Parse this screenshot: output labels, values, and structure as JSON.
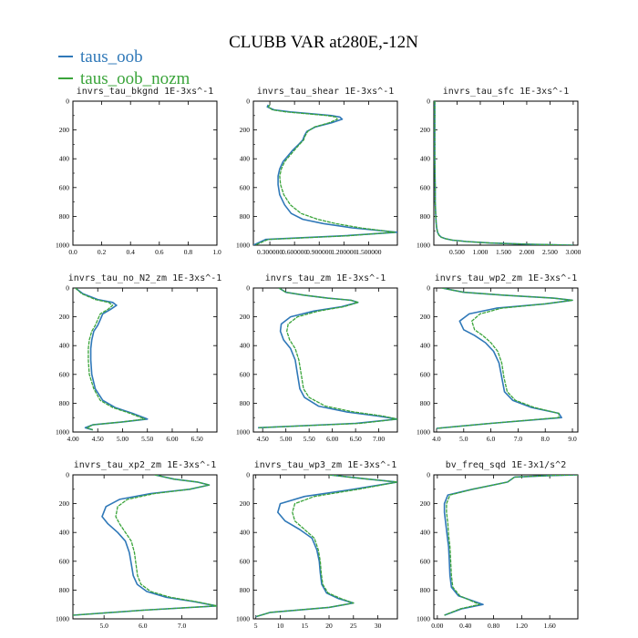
{
  "figure": {
    "title": "CLUBB VAR at280E,-12N",
    "legend": [
      {
        "label": "taus_oob",
        "color": "#2f78b8"
      },
      {
        "label": "taus_oob_nozm",
        "color": "#3aa43a"
      }
    ]
  },
  "chart_data": [
    {
      "type": "line",
      "title": "invrs_tau_bkgnd",
      "units": "1E-3xs^-1",
      "xticks": [
        "0.0",
        "0.2",
        "0.4",
        "0.6",
        "0.8",
        "1.0"
      ],
      "yticks": [
        "0",
        "200",
        "400",
        "600",
        "800",
        "1000"
      ],
      "xlim": [
        0,
        1
      ],
      "ylim": [
        1000,
        0
      ],
      "series": []
    },
    {
      "type": "line",
      "title": "invrs_tau_shear",
      "units": "1E-3xs^-1",
      "xticks": [
        "0.300000",
        "0.600000",
        "0.900000",
        "1.200000",
        "1.500000"
      ],
      "yticks": [
        "0",
        "200",
        "400",
        "600",
        "800",
        "1000"
      ],
      "xlim": [
        0.1,
        1.85
      ],
      "ylim": [
        1000,
        0
      ],
      "series": [
        {
          "name": "taus_oob",
          "x": [
            0.28,
            0.27,
            0.35,
            0.55,
            0.85,
            1.05,
            1.15,
            1.18,
            1.05,
            0.85,
            0.75,
            0.72,
            0.7,
            0.65,
            0.58,
            0.52,
            0.46,
            0.42,
            0.4,
            0.4,
            0.42,
            0.48,
            0.56,
            0.7,
            0.95,
            1.3,
            1.85,
            1.2,
            0.25,
            0.1
          ],
          "y": [
            25,
            40,
            60,
            75,
            90,
            100,
            110,
            125,
            150,
            180,
            210,
            240,
            270,
            300,
            340,
            380,
            420,
            470,
            520,
            580,
            650,
            720,
            780,
            820,
            850,
            880,
            910,
            935,
            960,
            1000
          ]
        },
        {
          "name": "taus_oob_nozm",
          "x": [
            0.3,
            0.28,
            0.33,
            0.5,
            0.8,
            1.0,
            1.1,
            1.12,
            1.02,
            0.84,
            0.76,
            0.73,
            0.71,
            0.66,
            0.6,
            0.54,
            0.48,
            0.44,
            0.42,
            0.43,
            0.47,
            0.55,
            0.68,
            0.88,
            1.1,
            1.4,
            1.82,
            1.25,
            0.28,
            0.12
          ],
          "y": [
            25,
            40,
            60,
            75,
            90,
            100,
            110,
            125,
            150,
            180,
            210,
            240,
            270,
            300,
            340,
            380,
            420,
            470,
            520,
            580,
            650,
            720,
            780,
            820,
            850,
            880,
            910,
            935,
            960,
            1000
          ]
        }
      ]
    },
    {
      "type": "line",
      "title": "invrs_tau_sfc",
      "units": "1E-3xs^-1",
      "xticks": [
        "0.500",
        "1.000",
        "1.500",
        "2.000",
        "2.500",
        "3.000"
      ],
      "yticks": [
        "0",
        "200",
        "400",
        "600",
        "800",
        "1000"
      ],
      "xlim": [
        0,
        3.1
      ],
      "ylim": [
        1000,
        0
      ],
      "series": [
        {
          "name": "taus_oob",
          "x": [
            0.02,
            0.02,
            0.02,
            0.03,
            0.03,
            0.04,
            0.05,
            0.06,
            0.08,
            0.11,
            0.16,
            0.25,
            0.4,
            0.7,
            1.2,
            2.0,
            3.0
          ],
          "y": [
            0,
            200,
            400,
            600,
            700,
            780,
            840,
            880,
            910,
            930,
            945,
            955,
            965,
            975,
            985,
            993,
            1000
          ]
        },
        {
          "name": "taus_oob_nozm",
          "x": [
            0.02,
            0.02,
            0.02,
            0.03,
            0.03,
            0.04,
            0.05,
            0.06,
            0.08,
            0.11,
            0.16,
            0.25,
            0.4,
            0.7,
            1.2,
            2.0,
            3.0
          ],
          "y": [
            0,
            200,
            400,
            600,
            700,
            780,
            840,
            880,
            910,
            930,
            945,
            955,
            965,
            975,
            985,
            993,
            1000
          ]
        }
      ]
    },
    {
      "type": "line",
      "title": "invrs_tau_no_N2_zm",
      "units": "1E-3xs^-1",
      "xticks": [
        "4.00",
        "4.50",
        "5.00",
        "5.50",
        "6.00",
        "6.50"
      ],
      "yticks": [
        "0",
        "200",
        "400",
        "600",
        "800",
        "1000"
      ],
      "xlim": [
        4.0,
        6.9
      ],
      "ylim": [
        1000,
        0
      ],
      "series": [
        {
          "name": "taus_oob",
          "x": [
            4.05,
            4.2,
            4.5,
            4.8,
            4.88,
            4.75,
            4.6,
            4.55,
            4.5,
            4.42,
            4.38,
            4.36,
            4.36,
            4.38,
            4.45,
            4.6,
            4.85,
            5.2,
            5.5,
            5.0,
            4.4,
            4.25,
            4.4
          ],
          "y": [
            0,
            40,
            80,
            100,
            120,
            150,
            180,
            220,
            260,
            300,
            360,
            420,
            500,
            600,
            700,
            780,
            830,
            870,
            910,
            930,
            950,
            970,
            985
          ]
        },
        {
          "name": "taus_oob_nozm",
          "x": [
            4.05,
            4.18,
            4.45,
            4.72,
            4.8,
            4.7,
            4.55,
            4.5,
            4.45,
            4.38,
            4.33,
            4.31,
            4.31,
            4.33,
            4.42,
            4.55,
            4.8,
            5.15,
            5.45,
            5.0,
            4.4,
            4.28,
            4.4
          ],
          "y": [
            0,
            40,
            80,
            100,
            120,
            150,
            180,
            220,
            260,
            300,
            360,
            420,
            500,
            600,
            700,
            780,
            830,
            870,
            910,
            930,
            950,
            970,
            985
          ]
        }
      ]
    },
    {
      "type": "line",
      "title": "invrs_tau_zm",
      "units": "1E-3xs^-1",
      "xticks": [
        "4.50",
        "5.00",
        "5.50",
        "6.00",
        "6.50",
        "7.00"
      ],
      "yticks": [
        "0",
        "200",
        "400",
        "600",
        "800",
        "1000"
      ],
      "xlim": [
        4.3,
        7.4
      ],
      "ylim": [
        1000,
        0
      ],
      "series": [
        {
          "name": "taus_oob",
          "x": [
            4.85,
            5.0,
            5.4,
            5.9,
            6.4,
            6.55,
            6.2,
            5.6,
            5.1,
            4.9,
            4.88,
            4.95,
            5.1,
            5.2,
            5.25,
            5.3,
            5.4,
            5.7,
            6.3,
            7.0,
            7.4,
            6.5,
            4.4
          ],
          "y": [
            0,
            30,
            50,
            70,
            85,
            100,
            130,
            160,
            200,
            250,
            300,
            360,
            420,
            500,
            600,
            700,
            760,
            820,
            860,
            890,
            910,
            940,
            970
          ]
        },
        {
          "name": "taus_oob_nozm",
          "x": [
            4.85,
            5.0,
            5.4,
            5.9,
            6.4,
            6.55,
            6.25,
            5.7,
            5.25,
            5.05,
            5.02,
            5.08,
            5.2,
            5.28,
            5.33,
            5.38,
            5.5,
            5.85,
            6.45,
            7.1,
            7.4,
            6.6,
            4.4
          ],
          "y": [
            0,
            30,
            50,
            70,
            85,
            100,
            130,
            160,
            200,
            250,
            300,
            360,
            420,
            500,
            600,
            700,
            760,
            820,
            860,
            890,
            910,
            940,
            970
          ]
        }
      ]
    },
    {
      "type": "line",
      "title": "invrs_tau_wp2_zm",
      "units": "1E-3xs^-1",
      "xticks": [
        "4.0",
        "5.0",
        "6.0",
        "7.0",
        "8.0",
        "9.0"
      ],
      "yticks": [
        "0",
        "200",
        "400",
        "600",
        "800",
        "1000"
      ],
      "xlim": [
        3.9,
        9.2
      ],
      "ylim": [
        1000,
        0
      ],
      "series": [
        {
          "name": "taus_oob",
          "x": [
            4.2,
            5.0,
            6.5,
            8.3,
            9.0,
            8.0,
            6.2,
            5.2,
            4.85,
            5.0,
            5.4,
            5.8,
            6.1,
            6.3,
            6.4,
            6.5,
            6.8,
            7.5,
            8.5,
            8.6,
            6.0,
            4.0
          ],
          "y": [
            0,
            30,
            50,
            70,
            85,
            110,
            140,
            180,
            230,
            290,
            330,
            380,
            440,
            520,
            620,
            720,
            780,
            830,
            870,
            900,
            940,
            975
          ]
        },
        {
          "name": "taus_oob_nozm",
          "x": [
            4.2,
            5.0,
            6.5,
            8.3,
            9.0,
            8.0,
            6.4,
            5.6,
            5.3,
            5.4,
            5.7,
            6.0,
            6.25,
            6.4,
            6.48,
            6.6,
            6.9,
            7.6,
            8.5,
            8.5,
            6.0,
            4.0
          ],
          "y": [
            0,
            30,
            50,
            70,
            85,
            110,
            140,
            180,
            230,
            290,
            330,
            380,
            440,
            520,
            620,
            720,
            780,
            830,
            870,
            900,
            940,
            975
          ]
        }
      ]
    },
    {
      "type": "line",
      "title": "invrs_tau_xp2_zm",
      "units": "1E-3xs^-1",
      "xticks": [
        "5.0",
        "6.0",
        "7.0"
      ],
      "yticks": [
        "0",
        "200",
        "400",
        "600",
        "800",
        "1000"
      ],
      "xlim": [
        4.2,
        7.9
      ],
      "ylim": [
        1000,
        0
      ],
      "series": [
        {
          "name": "taus_oob",
          "x": [
            6.3,
            6.8,
            7.4,
            7.7,
            7.2,
            6.2,
            5.4,
            5.05,
            4.95,
            5.1,
            5.35,
            5.55,
            5.65,
            5.7,
            5.75,
            5.85,
            6.1,
            6.6,
            7.3,
            7.9,
            6.0,
            4.2
          ],
          "y": [
            0,
            30,
            50,
            70,
            100,
            130,
            170,
            220,
            290,
            340,
            400,
            460,
            540,
            620,
            700,
            760,
            810,
            850,
            880,
            910,
            940,
            975
          ]
        },
        {
          "name": "taus_oob_nozm",
          "x": [
            6.3,
            6.8,
            7.4,
            7.7,
            7.2,
            6.3,
            5.6,
            5.35,
            5.3,
            5.4,
            5.55,
            5.7,
            5.78,
            5.82,
            5.86,
            5.95,
            6.2,
            6.7,
            7.35,
            7.9,
            6.0,
            4.2
          ],
          "y": [
            0,
            30,
            50,
            70,
            100,
            130,
            170,
            220,
            290,
            340,
            400,
            460,
            540,
            620,
            700,
            760,
            810,
            850,
            880,
            910,
            940,
            975
          ]
        }
      ]
    },
    {
      "type": "line",
      "title": "invrs_tau_wp3_zm",
      "units": "1E-3xs^-1",
      "xticks": [
        "5",
        "10",
        "15",
        "20",
        "25",
        "30"
      ],
      "yticks": [
        "0",
        "200",
        "400",
        "600",
        "800",
        "1000"
      ],
      "xlim": [
        4.5,
        34
      ],
      "ylim": [
        1000,
        0
      ],
      "series": [
        {
          "name": "taus_oob",
          "x": [
            20,
            28,
            34,
            25,
            15,
            10,
            9.5,
            11,
            14,
            16.5,
            17.5,
            18,
            18.2,
            18.5,
            19.5,
            22,
            25,
            20,
            8,
            5
          ],
          "y": [
            0,
            30,
            50,
            100,
            150,
            200,
            260,
            320,
            380,
            440,
            520,
            600,
            680,
            760,
            820,
            860,
            890,
            920,
            955,
            985
          ]
        },
        {
          "name": "taus_oob_nozm",
          "x": [
            20,
            28,
            34,
            26,
            17,
            13,
            12.5,
            13,
            15,
            17,
            17.8,
            18.2,
            18.4,
            18.7,
            19.8,
            22.5,
            25,
            20,
            8,
            5
          ],
          "y": [
            0,
            30,
            50,
            100,
            150,
            200,
            260,
            320,
            380,
            440,
            520,
            600,
            680,
            760,
            820,
            860,
            890,
            920,
            955,
            985
          ]
        }
      ]
    },
    {
      "type": "line",
      "title": "bv_freq_sqd",
      "units": "1E-3x1/s^2",
      "xticks": [
        "0.00",
        "0.40",
        "0.80",
        "1.20",
        "1.60"
      ],
      "yticks": [
        "0",
        "200",
        "400",
        "600",
        "800",
        "1000"
      ],
      "xlim": [
        -0.05,
        2.0
      ],
      "ylim": [
        1000,
        0
      ],
      "series": [
        {
          "name": "taus_oob",
          "x": [
            2.0,
            1.6,
            1.1,
            1.0,
            0.5,
            0.15,
            0.1,
            0.1,
            0.12,
            0.14,
            0.16,
            0.17,
            0.18,
            0.2,
            0.3,
            0.65,
            0.35,
            0.1
          ],
          "y": [
            0,
            5,
            15,
            50,
            100,
            140,
            200,
            260,
            340,
            420,
            500,
            600,
            700,
            780,
            840,
            900,
            930,
            975
          ]
        },
        {
          "name": "taus_oob_nozm",
          "x": [
            2.0,
            1.6,
            1.1,
            1.0,
            0.5,
            0.18,
            0.13,
            0.13,
            0.15,
            0.16,
            0.18,
            0.19,
            0.2,
            0.22,
            0.32,
            0.6,
            0.33,
            0.1
          ],
          "y": [
            0,
            5,
            15,
            50,
            100,
            140,
            200,
            260,
            340,
            420,
            500,
            600,
            700,
            780,
            840,
            900,
            930,
            975
          ]
        }
      ]
    }
  ]
}
